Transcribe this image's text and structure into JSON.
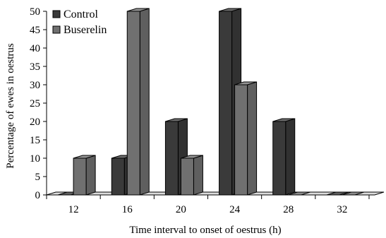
{
  "chart_data": {
    "type": "bar",
    "title": "",
    "xlabel": "Time interval to onset of oestrus (h)",
    "ylabel": "Percentage of ewes in oestrus",
    "categories": [
      "12",
      "16",
      "20",
      "24",
      "28",
      "32"
    ],
    "series": [
      {
        "name": "Control",
        "values": [
          0,
          10,
          20,
          50,
          20,
          0
        ],
        "color": "#3a3a3a"
      },
      {
        "name": "Buserelin",
        "values": [
          10,
          50,
          10,
          30,
          0,
          0
        ],
        "color": "#707070"
      }
    ],
    "ylim": [
      0,
      50
    ],
    "yticks": [
      0,
      5,
      10,
      15,
      20,
      25,
      30,
      35,
      40,
      45,
      50
    ],
    "grid": false,
    "legend_position": "top-left",
    "three_d": true
  }
}
